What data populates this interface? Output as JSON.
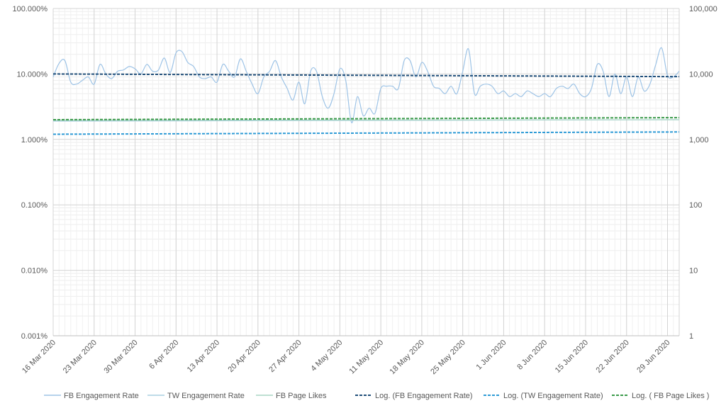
{
  "chart_data": {
    "type": "line",
    "x_labels": [
      "16 Mar 2020",
      "23 Mar 2020",
      "30 Mar 2020",
      "6 Apr 2020",
      "13 Apr 2020",
      "20 Apr 2020",
      "27 Apr 2020",
      "4 May 2020",
      "11 May 2020",
      "18 May 2020",
      "25 May 2020",
      "1 Jun 2020",
      "8 Jun 2020",
      "15 Jun 2020",
      "22 Jun 2020",
      "29 Jun 2020"
    ],
    "x_range": [
      "16 Mar 2020",
      "1 Jul 2020"
    ],
    "y_left": {
      "scale": "log",
      "range": [
        0.001,
        100
      ],
      "tick_labels": [
        "0.001%",
        "0.010%",
        "0.100%",
        "1.000%",
        "10.000%",
        "100.000%"
      ]
    },
    "y_right": {
      "scale": "log",
      "range": [
        1,
        100000
      ],
      "tick_labels": [
        "1",
        "10",
        "100",
        "1,000",
        "10,000",
        "100,000"
      ]
    },
    "grid": true,
    "legend_position": "bottom",
    "series": [
      {
        "name": "FB Engagement Rate",
        "axis": "left",
        "color": "#9dc3e6",
        "style": "solid",
        "dates": [
          "2020-03-16",
          "2020-03-17",
          "2020-03-18",
          "2020-03-19",
          "2020-03-20",
          "2020-03-21",
          "2020-03-22",
          "2020-03-23",
          "2020-03-24",
          "2020-03-25",
          "2020-03-26",
          "2020-03-27",
          "2020-03-28",
          "2020-03-29",
          "2020-03-30",
          "2020-03-31",
          "2020-04-01",
          "2020-04-02",
          "2020-04-03",
          "2020-04-04",
          "2020-04-05",
          "2020-04-06",
          "2020-04-07",
          "2020-04-08",
          "2020-04-09",
          "2020-04-10",
          "2020-04-11",
          "2020-04-12",
          "2020-04-13",
          "2020-04-14",
          "2020-04-15",
          "2020-04-16",
          "2020-04-17",
          "2020-04-18",
          "2020-04-19",
          "2020-04-20",
          "2020-04-21",
          "2020-04-22",
          "2020-04-23",
          "2020-04-24",
          "2020-04-25",
          "2020-04-26",
          "2020-04-27",
          "2020-04-28",
          "2020-04-29",
          "2020-04-30",
          "2020-05-01",
          "2020-05-02",
          "2020-05-03",
          "2020-05-04",
          "2020-05-05",
          "2020-05-06",
          "2020-05-07",
          "2020-05-08",
          "2020-05-09",
          "2020-05-10",
          "2020-05-11",
          "2020-05-12",
          "2020-05-13",
          "2020-05-14",
          "2020-05-15",
          "2020-05-16",
          "2020-05-17",
          "2020-05-18",
          "2020-05-19",
          "2020-05-20",
          "2020-05-21",
          "2020-05-22",
          "2020-05-23",
          "2020-05-24",
          "2020-05-25",
          "2020-05-26",
          "2020-05-27",
          "2020-05-28",
          "2020-05-29",
          "2020-05-30",
          "2020-05-31",
          "2020-06-01",
          "2020-06-02",
          "2020-06-03",
          "2020-06-04",
          "2020-06-05",
          "2020-06-06",
          "2020-06-07",
          "2020-06-08",
          "2020-06-09",
          "2020-06-10",
          "2020-06-11",
          "2020-06-12",
          "2020-06-13",
          "2020-06-14",
          "2020-06-15",
          "2020-06-16",
          "2020-06-17",
          "2020-06-18",
          "2020-06-19",
          "2020-06-20",
          "2020-06-21",
          "2020-06-22",
          "2020-06-23",
          "2020-06-24",
          "2020-06-25",
          "2020-06-26",
          "2020-06-27",
          "2020-06-28",
          "2020-06-29",
          "2020-06-30",
          "2020-07-01"
        ],
        "values": [
          9.0,
          14.5,
          16.0,
          7.5,
          7.0,
          8.0,
          9.0,
          7.0,
          14.0,
          10.0,
          8.5,
          11.0,
          11.5,
          13.0,
          12.0,
          10.0,
          14.0,
          11.0,
          11.5,
          17.5,
          10.5,
          21.0,
          22.0,
          15.0,
          13.0,
          9.0,
          8.5,
          9.0,
          7.5,
          14.0,
          11.0,
          9.0,
          17.0,
          11.0,
          7.0,
          5.0,
          9.0,
          11.0,
          16.0,
          9.0,
          6.0,
          4.0,
          7.5,
          3.5,
          11.0,
          11.0,
          4.5,
          3.0,
          5.0,
          12.0,
          8.0,
          1.8,
          4.5,
          2.3,
          3.0,
          2.5,
          6.0,
          6.5,
          6.5,
          6.0,
          16.0,
          16.0,
          9.0,
          15.0,
          11.0,
          6.5,
          6.0,
          5.0,
          6.5,
          5.0,
          11.0,
          24.0,
          5.0,
          6.5,
          7.0,
          6.5,
          5.0,
          5.5,
          4.5,
          5.0,
          4.5,
          5.5,
          5.0,
          4.5,
          5.0,
          4.5,
          6.0,
          6.5,
          6.0,
          7.0,
          5.0,
          4.5,
          6.0,
          14.0,
          11.0,
          4.5,
          10.0,
          5.0,
          9.0,
          4.5,
          9.0,
          5.5,
          7.0,
          14.0,
          25.0,
          9.5,
          9.0,
          11.0
        ]
      },
      {
        "name": "TW Engagement Rate",
        "axis": "left",
        "color": "#a9cfe0",
        "style": "solid",
        "start": 1.9,
        "end": 2.0
      },
      {
        "name": "FB Page Likes",
        "axis": "right",
        "color": "#a8d5c4",
        "style": "solid",
        "start": 1950,
        "end": 2000
      },
      {
        "name": "Log. (FB Engagement Rate)",
        "axis": "left",
        "color": "#1f4e79",
        "style": "dashed",
        "start": 10.0,
        "end": 9.1
      },
      {
        "name": "Log. (TW Engagement Rate)",
        "axis": "left",
        "color": "#2e9bd6",
        "style": "dashed",
        "start": 1.2,
        "end": 1.3
      },
      {
        "name": "Log. ( FB Page Likes )",
        "axis": "right",
        "color": "#3a9a4a",
        "style": "dashed",
        "start": 2000,
        "end": 2150
      }
    ]
  }
}
